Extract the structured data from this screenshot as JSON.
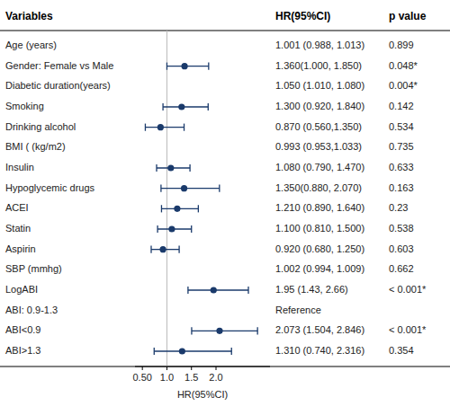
{
  "chart_data": {
    "type": "forest",
    "columns": [
      "Variables",
      "HR(95%CI)",
      "p value"
    ],
    "xlabel": "HR(95%CI)",
    "categories": [
      "Age (years)",
      "Gender: Female vs Male",
      "Diabetic duration(years)",
      "Smoking",
      "Drinking alcohol",
      "BMI ( (kg/m2)",
      "Insulin",
      "Hypoglycemic drugs",
      "ACEI",
      "Statin",
      "Aspirin",
      "SBP (mmhg)",
      "LogABI",
      "ABI: 0.9-1.3",
      "ABI<0.9",
      "ABI>1.3"
    ],
    "values": [
      null,
      1.36,
      null,
      1.3,
      0.87,
      null,
      1.08,
      1.35,
      1.21,
      1.1,
      0.92,
      null,
      1.95,
      null,
      2.073,
      1.31
    ],
    "ci_low": [
      null,
      1.0,
      null,
      0.92,
      0.56,
      null,
      0.79,
      0.88,
      0.89,
      0.81,
      0.68,
      null,
      1.43,
      null,
      1.504,
      0.74
    ],
    "ci_high": [
      null,
      1.85,
      null,
      1.84,
      1.35,
      null,
      1.47,
      2.07,
      1.64,
      1.5,
      1.25,
      null,
      2.66,
      null,
      2.846,
      2.316
    ],
    "hr_labels": [
      "1.001 (0.988, 1.013)",
      "1.360(1.000, 1.850)",
      "1.050 (1.010, 1.080)",
      "1.300 (0.920, 1.840)",
      "0.870 (0.560,1.350)",
      "0.993 (0.953,1.033)",
      "1.080 (0.790, 1.470)",
      "1.350(0.880, 2.070)",
      "1.210 (0.890, 1.640)",
      "1.100 (0.810, 1.500)",
      "0.920 (0.680, 1.250)",
      "1.002 (0.994, 1.009)",
      "1.95 (1.43, 2.66)",
      "Reference",
      "2.073 (1.504, 2.846)",
      "1.310 (0.740, 2.316)"
    ],
    "p_labels": [
      "0.899",
      "0.048*",
      "0.004*",
      "0.142",
      "0.534",
      "0.735",
      "0.633",
      "0.163",
      "0.23",
      "0.538",
      "0.603",
      "0.662",
      "< 0.001*",
      null,
      "< 0.001*",
      "0.354"
    ],
    "color": "#1a3a6b",
    "ref_line": 1.0,
    "xlim": [
      0.35,
      3.1
    ],
    "xticks": [
      {
        "value": 0.5,
        "label": "0.50"
      },
      {
        "value": 1.0,
        "label": "1.0"
      },
      1.5,
      {
        "value": 2.0,
        "label": "2.0"
      }
    ],
    "grid": false
  }
}
